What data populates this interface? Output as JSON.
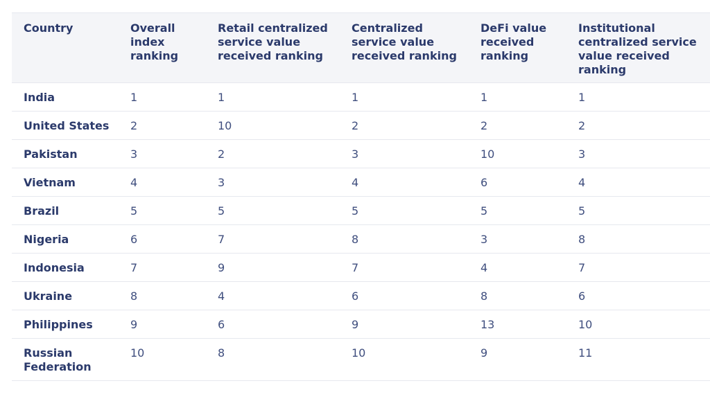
{
  "table": {
    "headers": [
      "Country",
      "Overall index ranking",
      "Retail centralized service value received ranking",
      "Centralized service value received ranking",
      "DeFi value received ranking",
      "Institutional centralized service value received ranking"
    ],
    "rows": [
      [
        "India",
        "1",
        "1",
        "1",
        "1",
        "1"
      ],
      [
        "United States",
        "2",
        "10",
        "2",
        "2",
        "2"
      ],
      [
        "Pakistan",
        "3",
        "2",
        "3",
        "10",
        "3"
      ],
      [
        "Vietnam",
        "4",
        "3",
        "4",
        "6",
        "4"
      ],
      [
        "Brazil",
        "5",
        "5",
        "5",
        "5",
        "5"
      ],
      [
        "Nigeria",
        "6",
        "7",
        "8",
        "3",
        "8"
      ],
      [
        "Indonesia",
        "7",
        "9",
        "7",
        "4",
        "7"
      ],
      [
        "Ukraine",
        "8",
        "4",
        "6",
        "8",
        "6"
      ],
      [
        "Philippines",
        "9",
        "6",
        "9",
        "13",
        "10"
      ],
      [
        "Russian Federation",
        "10",
        "8",
        "10",
        "9",
        "11"
      ]
    ]
  }
}
